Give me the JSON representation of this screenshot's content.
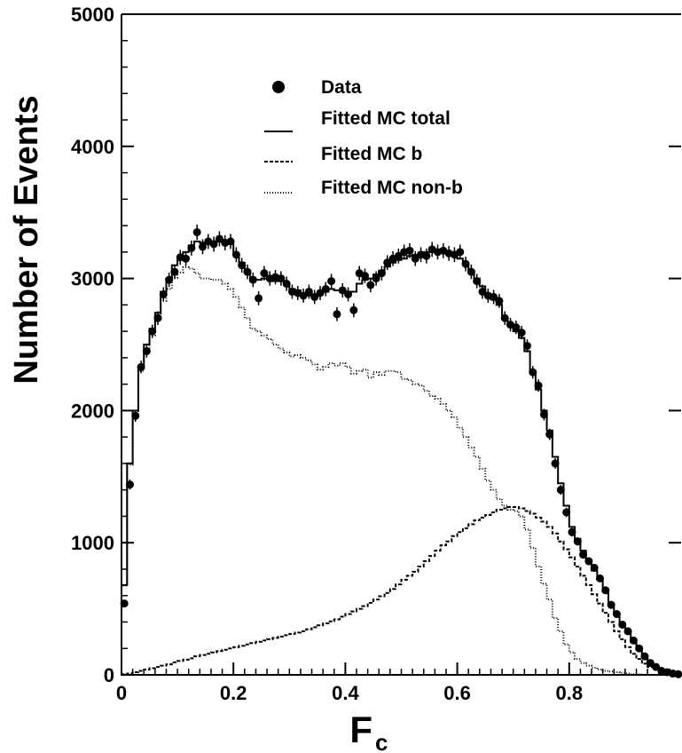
{
  "chart_data": {
    "type": "line",
    "title": "",
    "xlabel": "F",
    "xlabel_subscript": "c",
    "ylabel": "Number of Events",
    "xlim": [
      0,
      1
    ],
    "ylim": [
      0,
      5000
    ],
    "x_ticks": [
      0,
      0.2,
      0.4,
      0.6,
      0.8
    ],
    "x_tick_labels": [
      "0",
      "0.2",
      "0.4",
      "0.6",
      "0.8"
    ],
    "y_ticks": [
      0,
      1000,
      2000,
      3000,
      4000,
      5000
    ],
    "y_tick_labels": [
      "0",
      "1000",
      "2000",
      "3000",
      "4000",
      "5000"
    ],
    "grid": false,
    "legend_position": "top-center",
    "legend": [
      {
        "label": "Data",
        "style": "marker"
      },
      {
        "label": "Fitted MC total",
        "style": "solid"
      },
      {
        "label": "Fitted MC b",
        "style": "dashed"
      },
      {
        "label": "Fitted MC non-b",
        "style": "dotted"
      }
    ],
    "bin_width": 0.01,
    "series": [
      {
        "name": "Data",
        "kind": "points",
        "x": [
          0.005,
          0.015,
          0.025,
          0.035,
          0.045,
          0.055,
          0.065,
          0.075,
          0.085,
          0.095,
          0.105,
          0.115,
          0.125,
          0.135,
          0.145,
          0.155,
          0.165,
          0.175,
          0.185,
          0.195,
          0.205,
          0.215,
          0.225,
          0.235,
          0.245,
          0.255,
          0.265,
          0.275,
          0.285,
          0.295,
          0.305,
          0.315,
          0.325,
          0.335,
          0.345,
          0.355,
          0.365,
          0.375,
          0.385,
          0.395,
          0.405,
          0.415,
          0.425,
          0.435,
          0.445,
          0.455,
          0.465,
          0.475,
          0.485,
          0.495,
          0.505,
          0.515,
          0.525,
          0.535,
          0.545,
          0.555,
          0.565,
          0.575,
          0.585,
          0.595,
          0.605,
          0.615,
          0.625,
          0.635,
          0.645,
          0.655,
          0.665,
          0.675,
          0.685,
          0.695,
          0.705,
          0.715,
          0.725,
          0.735,
          0.745,
          0.755,
          0.765,
          0.775,
          0.785,
          0.795,
          0.805,
          0.815,
          0.825,
          0.835,
          0.845,
          0.855,
          0.865,
          0.875,
          0.885,
          0.895,
          0.905,
          0.915,
          0.925,
          0.935,
          0.945,
          0.955,
          0.965,
          0.975,
          0.985,
          0.995
        ],
        "y": [
          540,
          1440,
          1960,
          2330,
          2450,
          2600,
          2700,
          2880,
          2990,
          3050,
          3160,
          3150,
          3230,
          3350,
          3240,
          3280,
          3260,
          3300,
          3270,
          3280,
          3180,
          3100,
          3050,
          2990,
          2850,
          3040,
          3000,
          3010,
          3000,
          2960,
          2900,
          2890,
          2870,
          2900,
          2860,
          2890,
          2920,
          2980,
          2730,
          2910,
          2880,
          2760,
          3040,
          3020,
          2950,
          3000,
          3040,
          3120,
          3150,
          3170,
          3200,
          3210,
          3150,
          3180,
          3170,
          3220,
          3200,
          3210,
          3190,
          3180,
          3200,
          3110,
          3050,
          2980,
          2900,
          2870,
          2860,
          2830,
          2700,
          2650,
          2630,
          2590,
          2490,
          2290,
          2190,
          1970,
          1820,
          1600,
          1400,
          1230,
          1080,
          1010,
          910,
          860,
          810,
          730,
          640,
          530,
          460,
          380,
          330,
          260,
          200,
          140,
          90,
          60,
          30,
          20,
          10,
          5
        ]
      },
      {
        "name": "Fitted MC total",
        "kind": "histogram",
        "y": [
          680,
          1600,
          2000,
          2330,
          2500,
          2620,
          2740,
          2900,
          3000,
          3100,
          3150,
          3200,
          3250,
          3280,
          3270,
          3290,
          3280,
          3300,
          3290,
          3260,
          3190,
          3120,
          3060,
          3000,
          2990,
          3000,
          3010,
          2980,
          2980,
          2950,
          2920,
          2910,
          2880,
          2870,
          2860,
          2880,
          2900,
          2920,
          2910,
          2900,
          2890,
          2900,
          2960,
          2990,
          3000,
          3030,
          3060,
          3090,
          3120,
          3140,
          3150,
          3170,
          3180,
          3190,
          3200,
          3210,
          3210,
          3200,
          3190,
          3180,
          3150,
          3110,
          3060,
          3000,
          2940,
          2880,
          2840,
          2800,
          2700,
          2640,
          2600,
          2550,
          2450,
          2300,
          2160,
          2000,
          1850,
          1650,
          1450,
          1280,
          1120,
          1030,
          940,
          870,
          790,
          720,
          630,
          540,
          460,
          390,
          320,
          250,
          190,
          140,
          95,
          60,
          35,
          18,
          8,
          3
        ]
      },
      {
        "name": "Fitted MC b",
        "kind": "histogram",
        "y": [
          5,
          10,
          20,
          30,
          40,
          50,
          60,
          70,
          80,
          95,
          105,
          115,
          125,
          140,
          150,
          160,
          170,
          180,
          190,
          200,
          210,
          220,
          230,
          240,
          250,
          260,
          270,
          280,
          290,
          300,
          310,
          320,
          330,
          345,
          360,
          375,
          390,
          405,
          420,
          440,
          460,
          480,
          500,
          520,
          545,
          570,
          595,
          620,
          650,
          685,
          720,
          750,
          780,
          820,
          860,
          900,
          940,
          980,
          1010,
          1050,
          1080,
          1110,
          1140,
          1170,
          1190,
          1210,
          1230,
          1250,
          1260,
          1270,
          1270,
          1260,
          1240,
          1220,
          1190,
          1160,
          1120,
          1070,
          1010,
          950,
          890,
          820,
          750,
          680,
          610,
          540,
          470,
          400,
          330,
          270,
          210,
          160,
          120,
          85,
          60,
          40,
          25,
          15,
          8,
          3
        ]
      },
      {
        "name": "Fitted MC non-b",
        "kind": "histogram",
        "y": [
          675,
          1590,
          1980,
          2300,
          2460,
          2570,
          2680,
          2830,
          2920,
          3005,
          3045,
          3085,
          3075,
          3040,
          3000,
          3000,
          2990,
          2990,
          2960,
          2920,
          2860,
          2780,
          2700,
          2620,
          2600,
          2570,
          2540,
          2500,
          2470,
          2440,
          2410,
          2420,
          2400,
          2380,
          2350,
          2310,
          2330,
          2360,
          2340,
          2360,
          2330,
          2280,
          2300,
          2310,
          2250,
          2290,
          2270,
          2300,
          2300,
          2290,
          2240,
          2230,
          2200,
          2190,
          2150,
          2110,
          2090,
          2050,
          2000,
          1950,
          1870,
          1800,
          1720,
          1650,
          1560,
          1470,
          1400,
          1330,
          1280,
          1250,
          1240,
          1200,
          1100,
          960,
          820,
          690,
          570,
          430,
          330,
          230,
          170,
          120,
          90,
          70,
          55,
          40,
          30,
          25,
          20,
          15,
          10,
          5,
          3,
          2,
          1,
          0,
          0,
          0,
          0,
          0
        ]
      }
    ]
  }
}
